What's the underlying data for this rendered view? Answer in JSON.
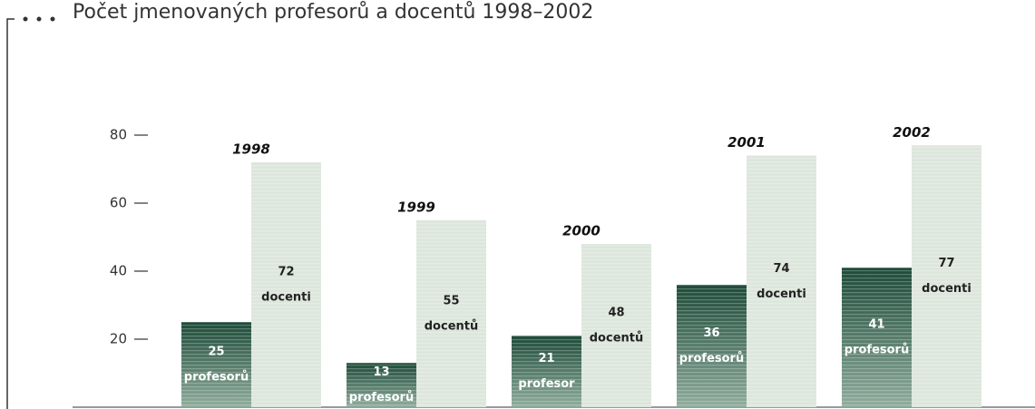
{
  "chart_data": {
    "type": "bar",
    "title": "Počet jmenovaných profesorů a docentů 1998–2002",
    "categories": [
      "1998",
      "1999",
      "2000",
      "2001",
      "2002"
    ],
    "series": [
      {
        "name": "profesoři",
        "color": "#2f6a51",
        "values": [
          25,
          13,
          21,
          36,
          41
        ],
        "unit_labels": [
          "profesorů",
          "profesorů",
          "profesor",
          "profesorů",
          "profesorů"
        ]
      },
      {
        "name": "docenti",
        "color": "#dde6dc",
        "values": [
          72,
          55,
          48,
          74,
          77
        ],
        "unit_labels": [
          "docenti",
          "docentů",
          "docentů",
          "docenti",
          "docenti"
        ]
      }
    ],
    "ylim": [
      0,
      80
    ],
    "yticks": [
      20,
      40,
      60,
      80
    ]
  }
}
